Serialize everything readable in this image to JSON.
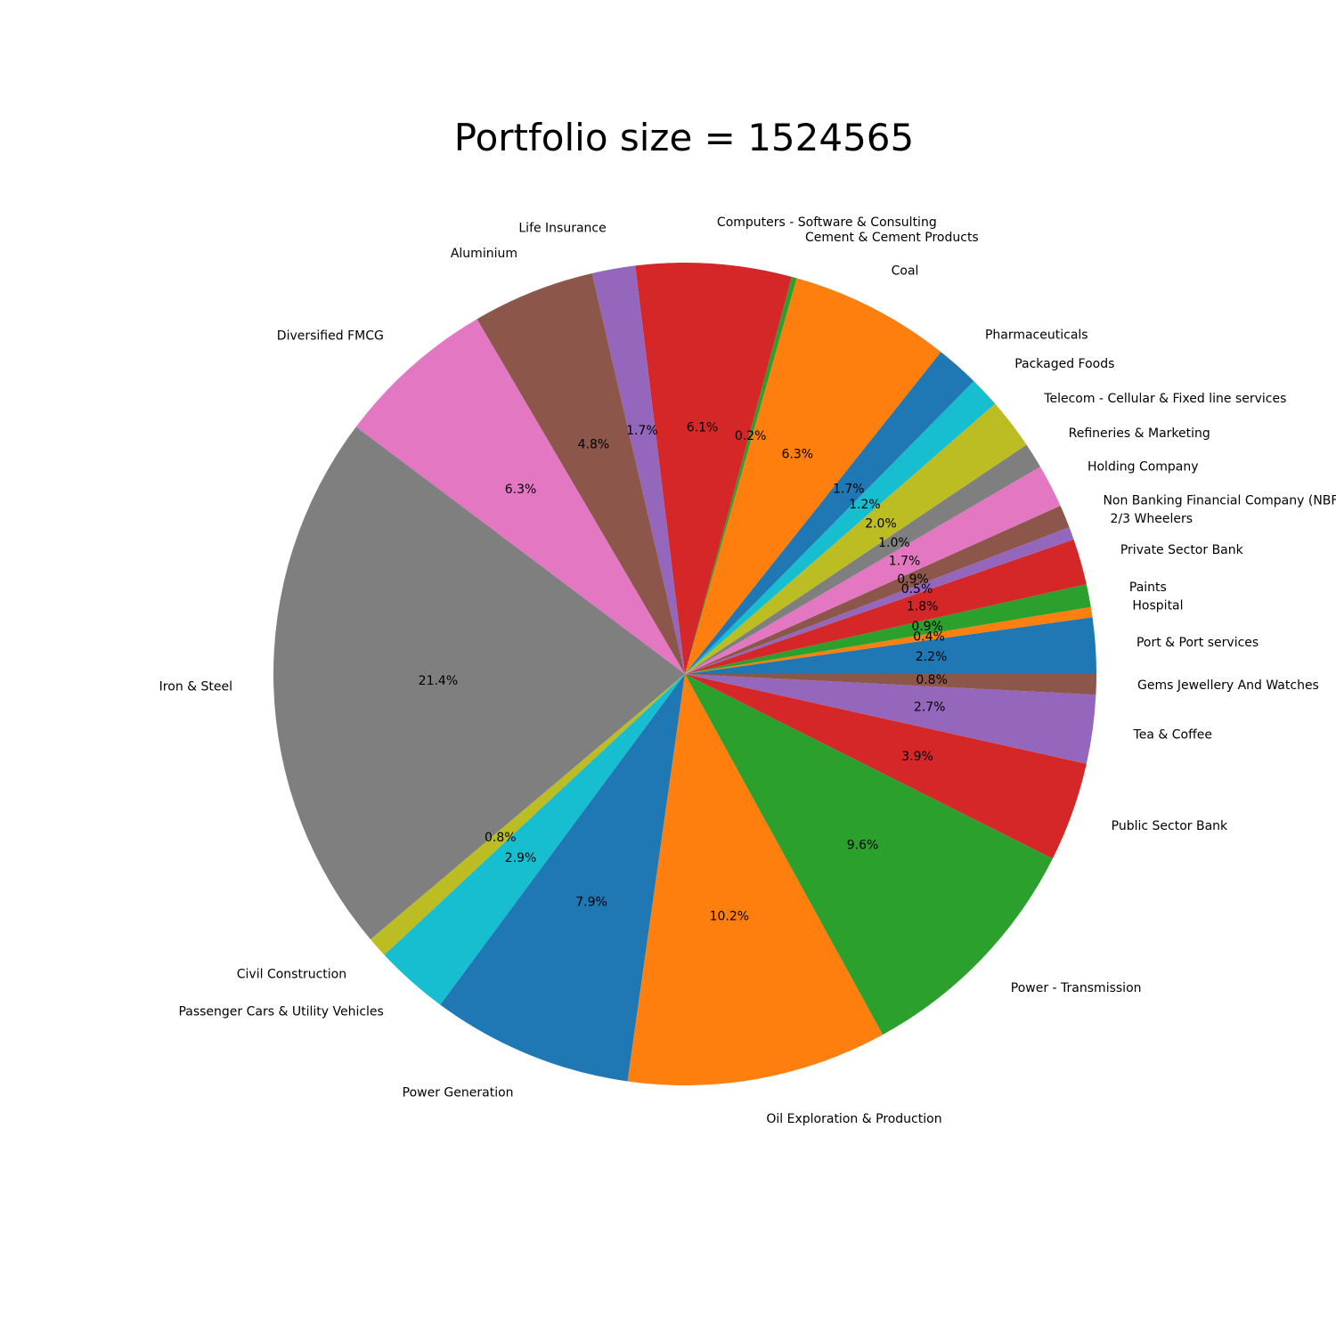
{
  "chart_data": {
    "type": "pie",
    "title": "Portfolio size = 1524565",
    "start_angle_deg": 0,
    "direction": "counterclockwise",
    "slices": [
      {
        "label": "Port & Port services",
        "value": 2.2,
        "pct_label": "2.2%",
        "color": "#1f77b4"
      },
      {
        "label": "Hospital",
        "value": 0.4,
        "pct_label": "0.4%",
        "color": "#ff7f0e"
      },
      {
        "label": "Paints",
        "value": 0.9,
        "pct_label": "0.9%",
        "color": "#2ca02c"
      },
      {
        "label": "Private Sector Bank",
        "value": 1.8,
        "pct_label": "1.8%",
        "color": "#d62728"
      },
      {
        "label": "2/3 Wheelers",
        "value": 0.5,
        "pct_label": "0.5%",
        "color": "#9467bd"
      },
      {
        "label": "Non Banking Financial Company (NBF",
        "value": 0.9,
        "pct_label": "0.9%",
        "color": "#8c564b"
      },
      {
        "label": "Holding Company",
        "value": 1.7,
        "pct_label": "1.7%",
        "color": "#e377c2"
      },
      {
        "label": "Refineries & Marketing",
        "value": 1.0,
        "pct_label": "1.0%",
        "color": "#7f7f7f"
      },
      {
        "label": "Telecom - Cellular & Fixed line services",
        "value": 2.0,
        "pct_label": "2.0%",
        "color": "#bcbd22"
      },
      {
        "label": "Packaged Foods",
        "value": 1.2,
        "pct_label": "1.2%",
        "color": "#17becf"
      },
      {
        "label": "Pharmaceuticals",
        "value": 1.7,
        "pct_label": "1.7%",
        "color": "#1f77b4"
      },
      {
        "label": "Coal",
        "value": 6.3,
        "pct_label": "6.3%",
        "color": "#ff7f0e"
      },
      {
        "label": "Cement & Cement Products",
        "value": 0.2,
        "pct_label": "0.2%",
        "color": "#2ca02c"
      },
      {
        "label": "Computers - Software & Consulting",
        "value": 6.1,
        "pct_label": "6.1%",
        "color": "#d62728"
      },
      {
        "label": "Life Insurance",
        "value": 1.7,
        "pct_label": "1.7%",
        "color": "#9467bd"
      },
      {
        "label": "Aluminium",
        "value": 4.8,
        "pct_label": "4.8%",
        "color": "#8c564b"
      },
      {
        "label": "Diversified FMCG",
        "value": 6.3,
        "pct_label": "6.3%",
        "color": "#e377c2"
      },
      {
        "label": "Iron & Steel",
        "value": 21.4,
        "pct_label": "21.4%",
        "color": "#7f7f7f"
      },
      {
        "label": "Civil Construction",
        "value": 0.8,
        "pct_label": "0.8%",
        "color": "#bcbd22"
      },
      {
        "label": "Passenger Cars & Utility Vehicles",
        "value": 2.9,
        "pct_label": "2.9%",
        "color": "#17becf"
      },
      {
        "label": "Power Generation",
        "value": 7.9,
        "pct_label": "7.9%",
        "color": "#1f77b4"
      },
      {
        "label": "Oil Exploration & Production",
        "value": 10.2,
        "pct_label": "10.2%",
        "color": "#ff7f0e"
      },
      {
        "label": "Power - Transmission",
        "value": 9.6,
        "pct_label": "9.6%",
        "color": "#2ca02c"
      },
      {
        "label": "Public Sector Bank",
        "value": 3.9,
        "pct_label": "3.9%",
        "color": "#d62728"
      },
      {
        "label": "Tea & Coffee",
        "value": 2.7,
        "pct_label": "2.7%",
        "color": "#9467bd"
      },
      {
        "label": "Gems Jewellery And Watches",
        "value": 0.8,
        "pct_label": "0.8%",
        "color": "#8c564b"
      }
    ]
  }
}
